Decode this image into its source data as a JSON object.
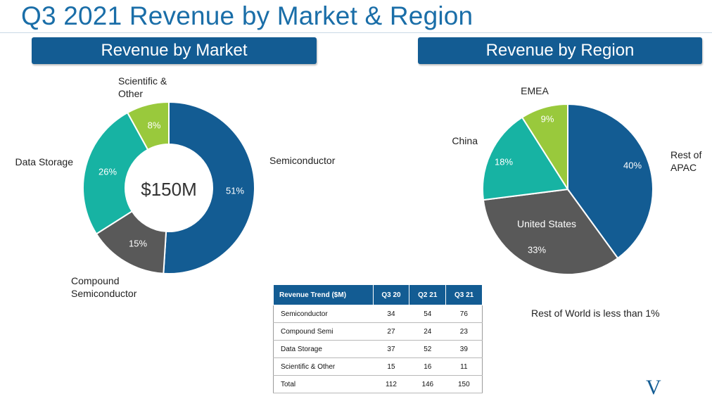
{
  "title": "Q3 2021 Revenue by Market & Region",
  "banners": {
    "market": "Revenue by Market",
    "region": "Revenue by Region"
  },
  "chart_data": [
    {
      "type": "pie",
      "variant": "donut",
      "title": "Revenue by Market",
      "center_label": "$150M",
      "slices": [
        {
          "label": "Semiconductor",
          "value": 51,
          "value_label": "51%",
          "color": "#135c93",
          "label_color": "#ffffff"
        },
        {
          "label": "Compound\nSemiconductor",
          "value": 15,
          "value_label": "15%",
          "color": "#595959",
          "label_color": "#ffffff"
        },
        {
          "label": "Data Storage",
          "value": 26,
          "value_label": "26%",
          "color": "#17b3a3",
          "label_color": "#ffffff"
        },
        {
          "label": "Scientific &\nOther",
          "value": 8,
          "value_label": "8%",
          "color": "#99c93c",
          "label_color": "#ffffff"
        }
      ]
    },
    {
      "type": "pie",
      "title": "Revenue by Region",
      "slices": [
        {
          "label": "Rest of\nAPAC",
          "value": 40,
          "value_label": "40%",
          "color": "#135c93",
          "label_color": "#ffffff"
        },
        {
          "label": "United States",
          "value": 33,
          "value_label": "33%",
          "color": "#595959",
          "label_color": "#ffffff"
        },
        {
          "label": "China",
          "value": 18,
          "value_label": "18%",
          "color": "#17b3a3",
          "label_color": "#ffffff"
        },
        {
          "label": "EMEA",
          "value": 9,
          "value_label": "9%",
          "color": "#99c93c",
          "label_color": "#ffffff"
        }
      ]
    },
    {
      "type": "table",
      "headers": [
        "Revenue Trend ($M)",
        "Q3 20",
        "Q2 21",
        "Q3 21"
      ],
      "rows": [
        [
          "Semiconductor",
          "34",
          "54",
          "76"
        ],
        [
          "Compound Semi",
          "27",
          "24",
          "23"
        ],
        [
          "Data Storage",
          "37",
          "52",
          "39"
        ],
        [
          "Scientific & Other",
          "15",
          "16",
          "11"
        ],
        [
          "Total",
          "112",
          "146",
          "150"
        ]
      ]
    }
  ],
  "note": "Rest of World is less than 1%",
  "corner_mark": "V"
}
